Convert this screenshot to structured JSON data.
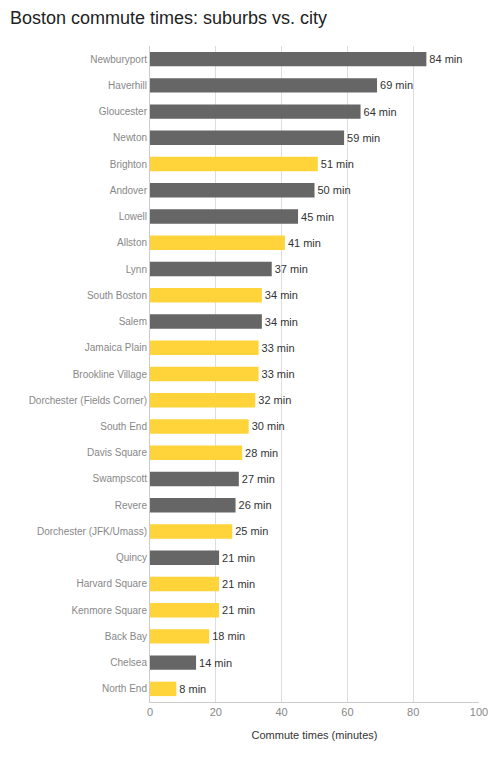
{
  "chart_data": {
    "type": "bar",
    "orientation": "horizontal",
    "title": "Boston commute times: suburbs vs. city",
    "x_label": "Commute times (minutes)",
    "categories": [
      "Newburyport",
      "Haverhill",
      "Gloucester",
      "Newton",
      "Brighton",
      "Andover",
      "Lowell",
      "Allston",
      "Lynn",
      "South Boston",
      "Salem",
      "Jamaica Plain",
      "Brookline Village",
      "Dorchester (Fields Corner)",
      "South End",
      "Davis Square",
      "Swampscott",
      "Revere",
      "Dorchester (JFK/Umass)",
      "Quincy",
      "Harvard Square",
      "Kenmore Square",
      "Back Bay",
      "Chelsea",
      "North End"
    ],
    "values": [
      84,
      69,
      64,
      59,
      51,
      50,
      45,
      41,
      37,
      34,
      34,
      33,
      33,
      32,
      30,
      28,
      27,
      26,
      25,
      21,
      21,
      21,
      18,
      14,
      8
    ],
    "value_labels": [
      "84 min",
      "69 min",
      "64 min",
      "59 min",
      "51 min",
      "50 min",
      "45 min",
      "41 min",
      "37 min",
      "34 min",
      "34 min",
      "33 min",
      "33 min",
      "32 min",
      "30 min",
      "28 min",
      "27 min",
      "26 min",
      "25 min",
      "21 min",
      "21 min",
      "21 min",
      "18 min",
      "14 min",
      "8 min"
    ],
    "colors": [
      "#666666",
      "#666666",
      "#666666",
      "#666666",
      "#ffd43b",
      "#666666",
      "#666666",
      "#ffd43b",
      "#666666",
      "#ffd43b",
      "#666666",
      "#ffd43b",
      "#ffd43b",
      "#ffd43b",
      "#ffd43b",
      "#ffd43b",
      "#666666",
      "#666666",
      "#ffd43b",
      "#666666",
      "#ffd43b",
      "#ffd43b",
      "#ffd43b",
      "#666666",
      "#ffd43b"
    ],
    "xlim": [
      0,
      100
    ],
    "xticks": [
      0,
      20,
      40,
      60,
      80,
      100
    ],
    "grid": true,
    "data_labels": true
  }
}
